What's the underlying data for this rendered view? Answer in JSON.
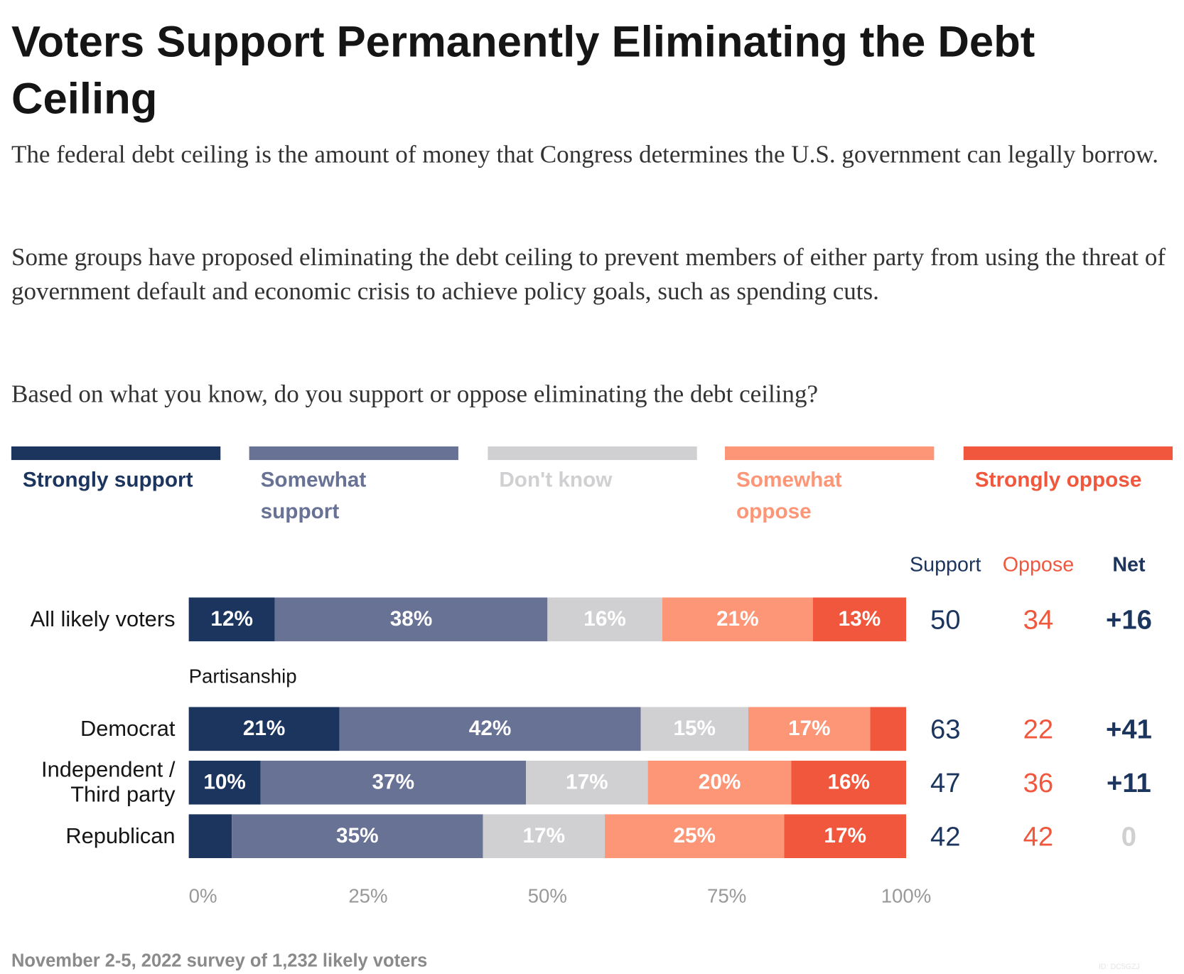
{
  "chart_data": {
    "type": "stacked_bar_horizontal",
    "title": "Voters Support Permanently Eliminating the Debt Ceiling",
    "subtitle": [
      "The federal debt ceiling is the amount of money that Congress determines the U.S. government can legally borrow.",
      "Some groups have proposed eliminating the debt ceiling to prevent members of either party from using the threat of government default and economic crisis to achieve policy goals, such as spending cuts.",
      "Based on what you know, do you support or oppose eliminating the debt ceiling?"
    ],
    "categories": [
      "All likely voters",
      "Democrat",
      "Independent / Third party",
      "Republican"
    ],
    "group_label": "Partisanship",
    "series": [
      {
        "name": "Strongly support",
        "color": "#1c355e",
        "label_color": "#ffffff",
        "values": [
          12,
          21,
          10,
          6
        ],
        "value_labels": [
          "12%",
          "21%",
          "10%",
          null
        ]
      },
      {
        "name": "Somewhat support",
        "color": "#687294",
        "label_color": "#ffffff",
        "values": [
          38,
          42,
          37,
          35
        ],
        "value_labels": [
          "38%",
          "42%",
          "37%",
          "35%"
        ]
      },
      {
        "name": "Don't know",
        "color": "#d0d0d2",
        "label_color": "#ffffff",
        "values": [
          16,
          15,
          17,
          17
        ],
        "value_labels": [
          "16%",
          "15%",
          "17%",
          "17%"
        ]
      },
      {
        "name": "Somewhat oppose",
        "color": "#fc9677",
        "label_color": "#ffffff",
        "values": [
          21,
          17,
          20,
          25
        ],
        "value_labels": [
          "21%",
          "17%",
          "20%",
          "25%"
        ]
      },
      {
        "name": "Strongly oppose",
        "color": "#f0573c",
        "label_color": "#ffffff",
        "values": [
          13,
          5,
          16,
          17
        ],
        "value_labels": [
          "13%",
          null,
          "16%",
          "17%"
        ]
      }
    ],
    "xlim": [
      0,
      100
    ],
    "xticks": [
      {
        "value": 0,
        "label": "0%"
      },
      {
        "value": 25,
        "label": "25%"
      },
      {
        "value": 50,
        "label": "50%"
      },
      {
        "value": 75,
        "label": "75%"
      },
      {
        "value": 100,
        "label": "100%"
      }
    ],
    "summary": [
      {
        "name": "Support",
        "color": "#1c355e",
        "values": [
          50,
          63,
          47,
          42
        ]
      },
      {
        "name": "Oppose",
        "color": "#f0573c",
        "values": [
          34,
          22,
          36,
          42
        ]
      },
      {
        "name": "Net",
        "color": "#1c355e",
        "neutral_color": "#d0d0d2",
        "bold": true,
        "values": [
          16,
          41,
          11,
          0
        ],
        "value_labels": [
          "+16",
          "+41",
          "+11",
          "0"
        ]
      }
    ],
    "note": "November 2-5, 2022 survey of 1,232 likely voters",
    "id_label": "ID: DC5GZJ"
  }
}
